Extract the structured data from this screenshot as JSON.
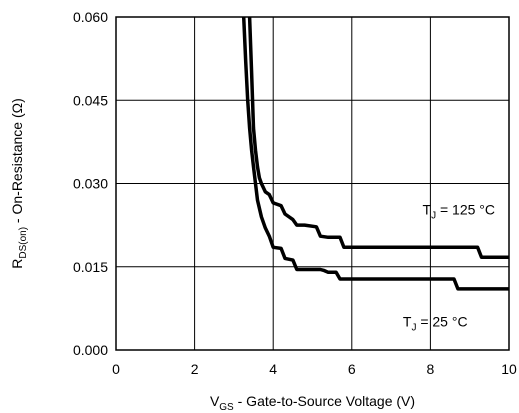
{
  "chart_data": {
    "type": "line",
    "x_axis": {
      "label_main": "V",
      "label_sub": "GS",
      "label_rest": " - Gate-to-Source Voltage (V)",
      "range": [
        0,
        10
      ],
      "ticks": [
        0,
        2,
        4,
        6,
        8,
        10
      ],
      "tick_labels": [
        "0",
        "2",
        "4",
        "6",
        "8",
        "10"
      ]
    },
    "y_axis": {
      "label_main": "R",
      "label_sub": "DS(on)",
      "label_rest": " - On-Resistance (Ω)",
      "range": [
        0,
        0.06
      ],
      "ticks": [
        0,
        0.015,
        0.03,
        0.045,
        0.06
      ],
      "tick_labels": [
        "0.000",
        "0.015",
        "0.030",
        "0.045",
        "0.060"
      ]
    },
    "grid": true,
    "series": [
      {
        "name_main": "T",
        "name_sub": "J",
        "name_rest": " = 125 °C",
        "color": "#000000",
        "x": [
          3.4,
          3.45,
          3.5,
          3.55,
          3.6,
          3.65,
          3.7,
          3.8,
          3.9,
          4.0,
          4.2,
          4.3,
          4.5,
          4.6,
          4.8,
          5.1,
          5.2,
          5.4,
          5.7,
          5.8,
          6.0,
          8.0,
          9.2,
          9.3,
          10.0
        ],
        "y": [
          0.06,
          0.05,
          0.04,
          0.036,
          0.033,
          0.031,
          0.03,
          0.0285,
          0.028,
          0.0265,
          0.026,
          0.0245,
          0.0235,
          0.0225,
          0.0225,
          0.0222,
          0.0205,
          0.0203,
          0.0203,
          0.0185,
          0.0185,
          0.0185,
          0.0185,
          0.0167,
          0.0167
        ]
      },
      {
        "name_main": "T",
        "name_sub": "J",
        "name_rest": " = 25 °C",
        "color": "#000000",
        "x": [
          3.25,
          3.3,
          3.35,
          3.4,
          3.45,
          3.5,
          3.55,
          3.6,
          3.7,
          3.8,
          3.9,
          4.0,
          4.2,
          4.3,
          4.5,
          4.6,
          5.2,
          5.3,
          5.4,
          5.6,
          5.7,
          6.0,
          8.0,
          8.6,
          8.7,
          10.0
        ],
        "y": [
          0.06,
          0.052,
          0.045,
          0.04,
          0.036,
          0.033,
          0.03,
          0.027,
          0.024,
          0.022,
          0.0205,
          0.0185,
          0.0183,
          0.0165,
          0.0162,
          0.0145,
          0.0145,
          0.0143,
          0.014,
          0.014,
          0.0128,
          0.0128,
          0.0128,
          0.0128,
          0.011,
          0.011
        ]
      }
    ],
    "annotations": [
      {
        "series": 0,
        "anchor_x": 7.8,
        "anchor_y": 0.0244
      },
      {
        "series": 1,
        "anchor_x": 7.3,
        "anchor_y": 0.0042
      }
    ]
  }
}
